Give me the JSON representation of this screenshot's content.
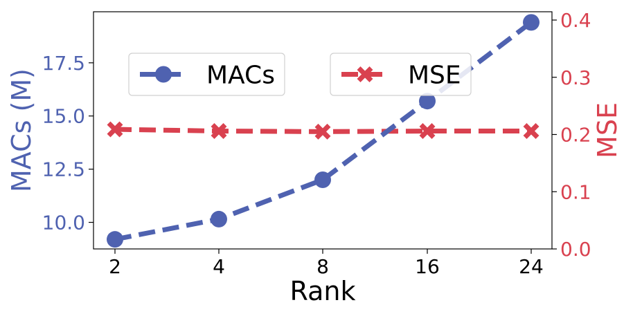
{
  "chart_data": {
    "type": "line",
    "categories": [
      "2",
      "4",
      "8",
      "16",
      "24"
    ],
    "xlabel": "Rank",
    "y_left": {
      "label": "MACs (M)",
      "ylim": [
        8.75,
        19.9
      ],
      "ticks": [
        10.0,
        12.5,
        15.0,
        17.5
      ],
      "tick_labels": [
        "10.0",
        "12.5",
        "15.0",
        "17.5"
      ],
      "color": "#4f62b0"
    },
    "y_right": {
      "label": "MSE",
      "ylim": [
        0.0,
        0.4
      ],
      "ticks": [
        0.0,
        0.1,
        0.2,
        0.3,
        0.4
      ],
      "tick_labels": [
        "0.0",
        "0.1",
        "0.2",
        "0.3",
        "0.4"
      ],
      "color": "#d9414f"
    },
    "series": [
      {
        "name": "MACs",
        "axis": "left",
        "marker": "circle",
        "line_style": "dashed",
        "color": "#4f62b0",
        "values": [
          9.2,
          10.15,
          12.0,
          15.7,
          19.4
        ]
      },
      {
        "name": "MSE",
        "axis": "right",
        "marker": "x",
        "line_style": "dashed",
        "color": "#d9414f",
        "values": [
          0.209,
          0.206,
          0.205,
          0.206,
          0.206
        ]
      }
    ],
    "legend": "top",
    "grid": false
  }
}
